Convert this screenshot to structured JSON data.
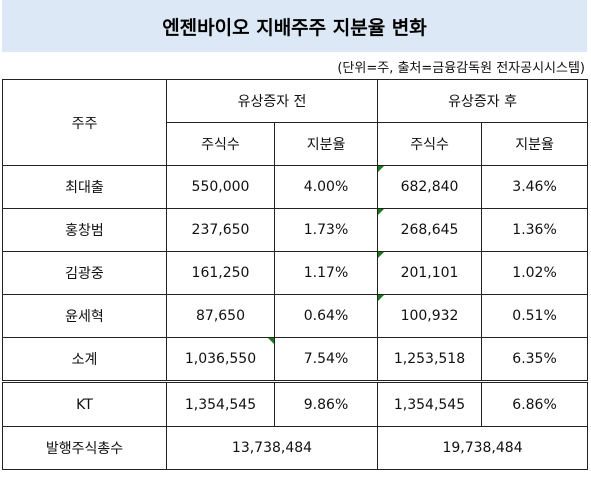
{
  "title": "엔젠바이오 지배주주 지분율 변화",
  "unit_note": "(단위=주, 출처=금융감독원 전자공시시스템)",
  "header": {
    "holder": "주주",
    "before": "유상증자 전",
    "after": "유상증자 후",
    "shares": "주식수",
    "ratio": "지분율"
  },
  "rows": [
    {
      "name": "최대출",
      "before_shares": "550,000",
      "before_ratio": "4.00%",
      "after_shares": "682,840",
      "after_ratio": "3.46%"
    },
    {
      "name": "홍창범",
      "before_shares": "237,650",
      "before_ratio": "1.73%",
      "after_shares": "268,645",
      "after_ratio": "1.36%"
    },
    {
      "name": "김광중",
      "before_shares": "161,250",
      "before_ratio": "1.17%",
      "after_shares": "201,101",
      "after_ratio": "1.02%"
    },
    {
      "name": "윤세혁",
      "before_shares": "87,650",
      "before_ratio": "0.64%",
      "after_shares": "100,932",
      "after_ratio": "0.51%"
    },
    {
      "name": "소계",
      "before_shares": "1,036,550",
      "before_ratio": "7.54%",
      "after_shares": "1,253,518",
      "after_ratio": "6.35%"
    }
  ],
  "kt": {
    "name": "KT",
    "before_shares": "1,354,545",
    "before_ratio": "9.86%",
    "after_shares": "1,354,545",
    "after_ratio": "6.86%"
  },
  "total": {
    "label": "발행주식총수",
    "before": "13,738,484",
    "after": "19,738,484"
  },
  "colors": {
    "title_bg": "#dce8f5",
    "error_marker": "#1a7a1a"
  }
}
